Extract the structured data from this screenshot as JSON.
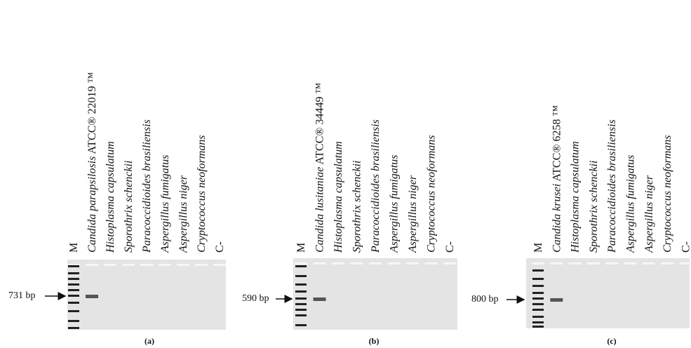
{
  "panels": [
    {
      "caption": "(a)",
      "marker": "731 bp",
      "lanes": [
        {
          "text": "M"
        },
        {
          "species": "Candida parapsilosis",
          "strain": "ATCC® 22019 ™"
        },
        {
          "species": "Histoplasma capsulatum"
        },
        {
          "species": "Sporothrix schenckii"
        },
        {
          "species": "Paracoccidioides brasiliensis"
        },
        {
          "species": "Aspergillus fumigatus"
        },
        {
          "species": "Aspergillus niger"
        },
        {
          "species": "Cryptococcus neoformans"
        },
        {
          "text": "C-"
        }
      ]
    },
    {
      "caption": "(b)",
      "marker": "590 bp",
      "lanes": [
        {
          "text": "M"
        },
        {
          "species": "Candida lusitaniae",
          "strain": "ATCC® 34449 ™"
        },
        {
          "species": "Histoplasma capsulatum"
        },
        {
          "species": "Sporothrix schenckii"
        },
        {
          "species": "Paracoccidioides brasiliensis"
        },
        {
          "species": "Aspergillus fumigatus"
        },
        {
          "species": "Aspergillus niger"
        },
        {
          "species": "Cryptococcus neoformans"
        },
        {
          "text": "C-"
        }
      ]
    },
    {
      "caption": "(c)",
      "marker": "800 bp",
      "lanes": [
        {
          "text": "M"
        },
        {
          "species": "Candida krusei",
          "strain": "ATCC® 6258 ™"
        },
        {
          "species": "Histoplasma capsulatum"
        },
        {
          "species": "Sporothrix schenckii"
        },
        {
          "species": "Paracoccidioides brasiliensis"
        },
        {
          "species": "Aspergillus fumigatus"
        },
        {
          "species": "Aspergillus niger"
        },
        {
          "species": "Cryptococcus neoformans"
        },
        {
          "text": "C-"
        }
      ]
    }
  ]
}
